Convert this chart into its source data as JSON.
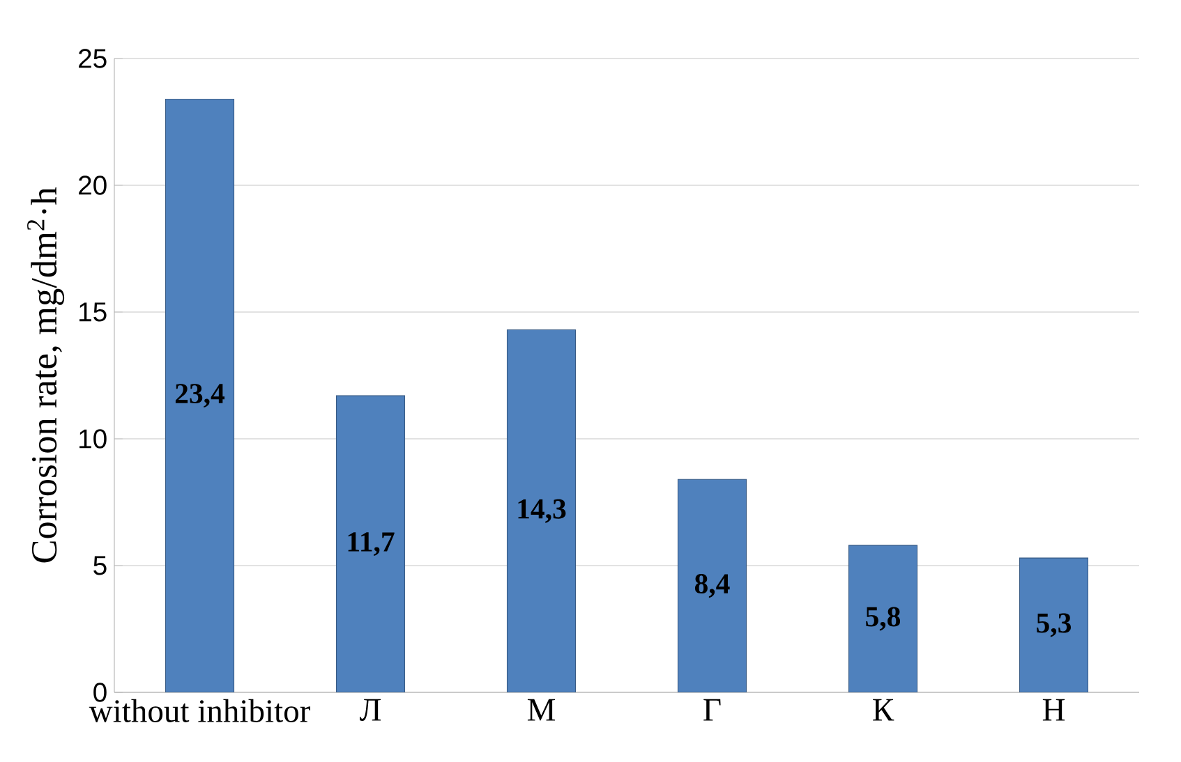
{
  "chart_data": {
    "type": "bar",
    "ylabel": "Corrosion rate, mg/dm$^{2}$·h",
    "categories": [
      "without inhibitor",
      "Л",
      "М",
      "Г",
      "К",
      "Н"
    ],
    "values": [
      23.4,
      11.7,
      14.3,
      8.4,
      5.8,
      5.3
    ],
    "value_labels": [
      "23,4",
      "11,7",
      "14,3",
      "8,4",
      "5,8",
      "5,3"
    ],
    "color": "#4f81bd",
    "ylim": [
      0,
      25
    ],
    "yticks": [
      0,
      5,
      10,
      15,
      20,
      25
    ],
    "grid": "y"
  }
}
